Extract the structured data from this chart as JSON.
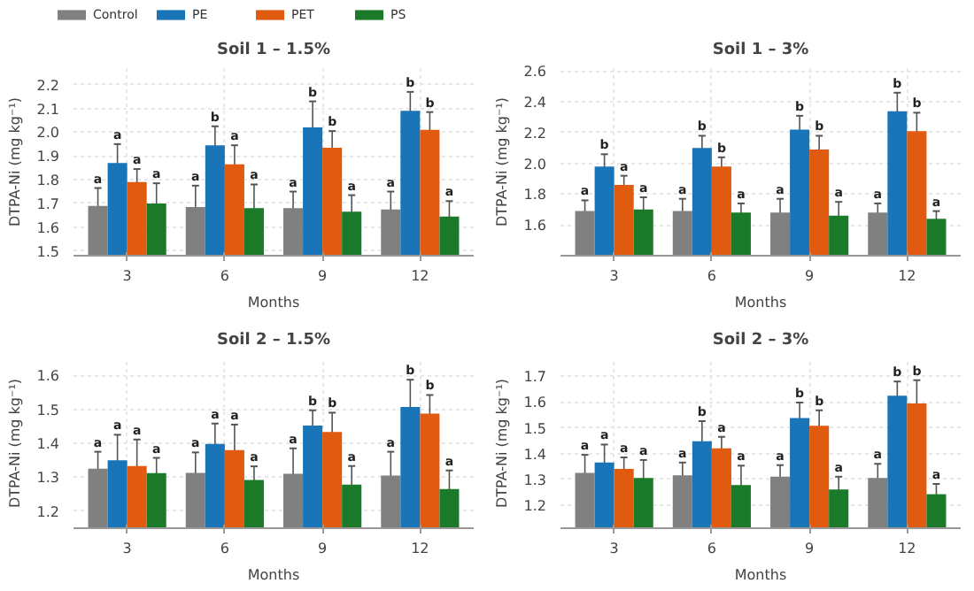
{
  "chart_data": [
    {
      "type": "bar",
      "title": "Soil 1 – 1.5%",
      "xlabel": "Months",
      "ylabel": "DTPA-Ni (mg kg⁻¹)",
      "categories": [
        "3",
        "6",
        "9",
        "12"
      ],
      "ylim": [
        1.48,
        2.27
      ],
      "yticks": [
        1.5,
        1.6,
        1.7,
        1.8,
        1.9,
        {
          "value": 2,
          "label": "2.0"
        },
        2.1,
        2.2
      ],
      "grid": true,
      "legend": "top",
      "series": [
        {
          "name": "Control",
          "color": "#808080",
          "values": [
            1.69,
            1.685,
            1.68,
            1.675
          ],
          "errors": [
            0.075,
            0.09,
            0.07,
            0.075
          ],
          "value_labels": [
            "a",
            "a",
            "a",
            "a"
          ]
        },
        {
          "name": "PE",
          "color": "#1a75b8",
          "values": [
            1.87,
            1.945,
            2.02,
            2.09
          ],
          "errors": [
            0.08,
            0.08,
            0.11,
            0.08
          ],
          "value_labels": [
            "a",
            "b",
            "b",
            "b"
          ]
        },
        {
          "name": "PET",
          "color": "#e05a10",
          "values": [
            1.79,
            1.865,
            1.935,
            2.01
          ],
          "errors": [
            0.055,
            0.08,
            0.07,
            0.075
          ],
          "value_labels": [
            "a",
            "a",
            "b",
            "b"
          ]
        },
        {
          "name": "PS",
          "color": "#1a7a2a",
          "values": [
            1.7,
            1.68,
            1.665,
            1.645
          ],
          "errors": [
            0.085,
            0.1,
            0.07,
            0.065
          ],
          "value_labels": [
            "a",
            "a",
            "a",
            "a"
          ]
        }
      ]
    },
    {
      "type": "bar",
      "title": "Soil 1 – 3%",
      "xlabel": "Months",
      "ylabel": "DTPA-Ni (mg kg⁻¹)",
      "categories": [
        "3",
        "6",
        "9",
        "12"
      ],
      "ylim": [
        1.4,
        2.62
      ],
      "yticks": [
        1.6,
        1.8,
        {
          "value": 2,
          "label": "2.0"
        },
        2.2,
        2.4,
        2.6
      ],
      "grid": true,
      "series": [
        {
          "color": "#808080",
          "values": [
            1.69,
            1.69,
            1.68,
            1.68
          ],
          "errors": [
            0.07,
            0.08,
            0.09,
            0.06
          ],
          "value_labels": [
            "a",
            "a",
            "a",
            "a"
          ]
        },
        {
          "color": "#1a75b8",
          "values": [
            1.98,
            2.1,
            2.22,
            2.34
          ],
          "errors": [
            0.08,
            0.08,
            0.09,
            0.12
          ],
          "value_labels": [
            "b",
            "b",
            "b",
            "b"
          ]
        },
        {
          "color": "#e05a10",
          "values": [
            1.86,
            1.98,
            2.09,
            2.21
          ],
          "errors": [
            0.06,
            0.06,
            0.09,
            0.12
          ],
          "value_labels": [
            "a",
            "b",
            "b",
            "b"
          ]
        },
        {
          "color": "#1a7a2a",
          "values": [
            1.7,
            1.68,
            1.66,
            1.64
          ],
          "errors": [
            0.08,
            0.06,
            0.09,
            0.05
          ],
          "value_labels": [
            "a",
            "a",
            "a",
            "a"
          ]
        }
      ]
    },
    {
      "type": "bar",
      "title": "Soil 2 – 1.5%",
      "xlabel": "Months",
      "ylabel": "DTPA-Ni (mg kg⁻¹)",
      "categories": [
        "3",
        "6",
        "9",
        "12"
      ],
      "ylim": [
        1.15,
        1.65
      ],
      "yticks": [
        1.2,
        1.3,
        1.4,
        1.5,
        1.6
      ],
      "grid": true,
      "series": [
        {
          "color": "#808080",
          "values": [
            1.325,
            1.313,
            1.31,
            1.305
          ],
          "errors": [
            0.05,
            0.06,
            0.075,
            0.07
          ],
          "value_labels": [
            "a",
            "a",
            "a",
            "a"
          ]
        },
        {
          "color": "#1a75b8",
          "values": [
            1.35,
            1.398,
            1.452,
            1.507
          ],
          "errors": [
            0.075,
            0.06,
            0.045,
            0.08
          ],
          "value_labels": [
            "a",
            "a",
            "b",
            "b"
          ]
        },
        {
          "color": "#e05a10",
          "values": [
            1.333,
            1.38,
            1.433,
            1.487
          ],
          "errors": [
            0.078,
            0.075,
            0.057,
            0.055
          ],
          "value_labels": [
            "a",
            "a",
            "b",
            "b"
          ]
        },
        {
          "color": "#1a7a2a",
          "values": [
            1.312,
            1.292,
            1.278,
            1.265
          ],
          "errors": [
            0.045,
            0.04,
            0.055,
            0.055
          ],
          "value_labels": [
            "a",
            "a",
            "a",
            "a"
          ]
        }
      ]
    },
    {
      "type": "bar",
      "title": "Soil 2 – 3%",
      "xlabel": "Months",
      "ylabel": "DTPA-Ni (mg kg⁻¹)",
      "categories": [
        "3",
        "6",
        "9",
        "12"
      ],
      "ylim": [
        1.11,
        1.77
      ],
      "yticks": [
        1.2,
        1.3,
        1.4,
        1.5,
        1.6,
        1.7
      ],
      "grid": true,
      "series": [
        {
          "color": "#808080",
          "values": [
            1.325,
            1.315,
            1.31,
            1.305
          ],
          "errors": [
            0.07,
            0.05,
            0.045,
            0.055
          ],
          "value_labels": [
            "a",
            "a",
            "a",
            "a"
          ]
        },
        {
          "color": "#1a75b8",
          "values": [
            1.365,
            1.448,
            1.538,
            1.625
          ],
          "errors": [
            0.07,
            0.078,
            0.06,
            0.055
          ],
          "value_labels": [
            "a",
            "b",
            "b",
            "b"
          ]
        },
        {
          "color": "#e05a10",
          "values": [
            1.34,
            1.42,
            1.508,
            1.595
          ],
          "errors": [
            0.045,
            0.045,
            0.06,
            0.09
          ],
          "value_labels": [
            "a",
            "a",
            "b",
            "b"
          ]
        },
        {
          "color": "#1a7a2a",
          "values": [
            1.305,
            1.278,
            1.26,
            1.242
          ],
          "errors": [
            0.07,
            0.075,
            0.05,
            0.04
          ],
          "value_labels": [
            "a",
            "a",
            "a",
            "a"
          ]
        }
      ]
    }
  ]
}
